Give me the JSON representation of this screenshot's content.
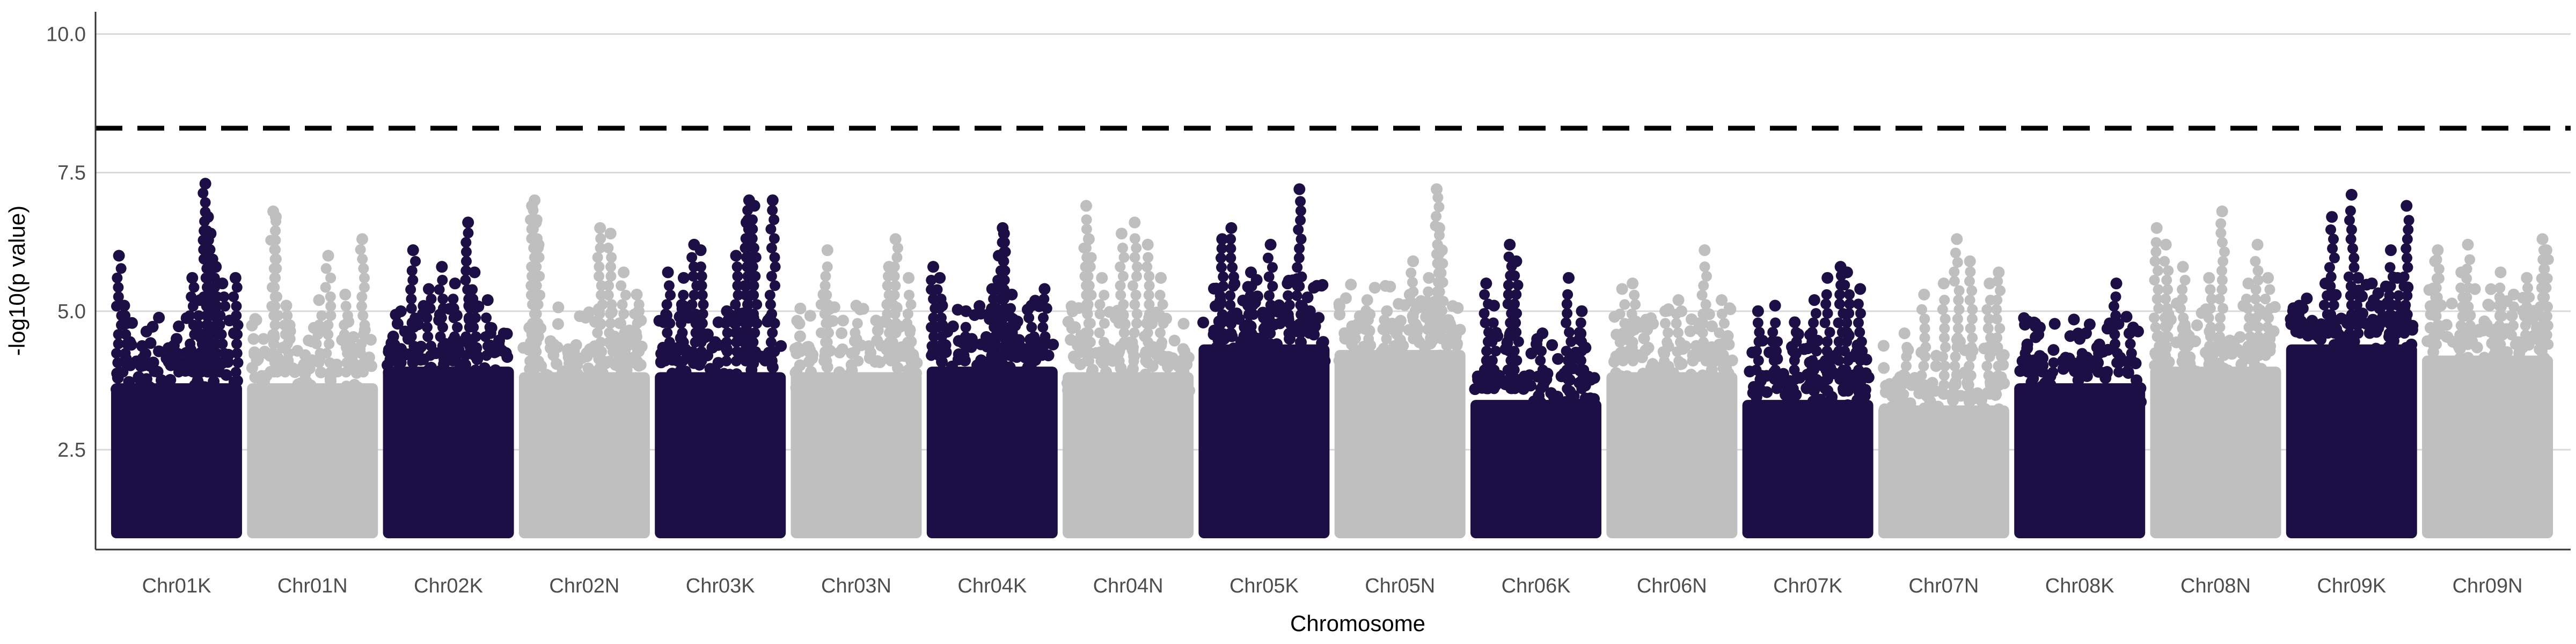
{
  "chart_data": {
    "type": "scatter",
    "subtype": "manhattan",
    "title": "",
    "xlabel": "Chromosome",
    "ylabel": "-log10(p value)",
    "ylim": [
      0.7,
      10.4
    ],
    "yticks": [
      2.5,
      5.0,
      7.5,
      10.0
    ],
    "ytick_labels": [
      "2.5",
      "5.0",
      "7.5",
      "10.0"
    ],
    "grid": "horizontal-major",
    "legend": "none",
    "threshold": {
      "value": 8.3,
      "style": "dashed",
      "color": "#000000"
    },
    "point_floor": 1.0,
    "colors": {
      "dark": "#1c0f45",
      "light": "#bfbfbf",
      "grid": "#d9d9d9",
      "axis": "#333333",
      "text": "#4d4d4d"
    },
    "categories": [
      "Chr01K",
      "Chr01N",
      "Chr02K",
      "Chr02N",
      "Chr03K",
      "Chr03N",
      "Chr04K",
      "Chr04N",
      "Chr05K",
      "Chr05N",
      "Chr06K",
      "Chr06N",
      "Chr07K",
      "Chr07N",
      "Chr08K",
      "Chr08N",
      "Chr09K",
      "Chr09N"
    ],
    "series_colors": [
      "dark",
      "light",
      "dark",
      "light",
      "dark",
      "light",
      "dark",
      "light",
      "dark",
      "light",
      "dark",
      "light",
      "dark",
      "light",
      "dark",
      "light",
      "dark",
      "light"
    ],
    "dense_top": [
      3.9,
      3.9,
      4.2,
      4.1,
      4.1,
      4.1,
      4.2,
      4.1,
      4.6,
      4.5,
      3.6,
      4.1,
      3.6,
      3.5,
      3.9,
      4.2,
      4.6,
      4.4
    ],
    "peaks": [
      {
        "chromosome": "Chr01K",
        "points": [
          [
            0.06,
            6.0
          ],
          [
            0.1,
            5.1
          ],
          [
            0.5,
            4.5
          ],
          [
            0.62,
            5.6
          ],
          [
            0.68,
            5.2
          ],
          [
            0.72,
            7.3
          ],
          [
            0.74,
            6.7
          ],
          [
            0.76,
            6.4
          ],
          [
            0.8,
            5.8
          ],
          [
            0.85,
            5.5
          ],
          [
            0.95,
            5.6
          ]
        ]
      },
      {
        "chromosome": "Chr01N",
        "points": [
          [
            0.2,
            6.8
          ],
          [
            0.22,
            6.7
          ],
          [
            0.3,
            5.1
          ],
          [
            0.55,
            5.2
          ],
          [
            0.62,
            6.0
          ],
          [
            0.75,
            5.3
          ],
          [
            0.88,
            6.3
          ]
        ]
      },
      {
        "chromosome": "Chr02K",
        "points": [
          [
            0.23,
            6.1
          ],
          [
            0.35,
            5.4
          ],
          [
            0.45,
            5.8
          ],
          [
            0.55,
            5.5
          ],
          [
            0.65,
            6.6
          ],
          [
            0.7,
            5.7
          ],
          [
            0.8,
            5.2
          ]
        ]
      },
      {
        "chromosome": "Chr02N",
        "points": [
          [
            0.1,
            6.9
          ],
          [
            0.12,
            7.0
          ],
          [
            0.13,
            6.6
          ],
          [
            0.15,
            6.2
          ],
          [
            0.62,
            6.5
          ],
          [
            0.7,
            6.4
          ],
          [
            0.8,
            5.7
          ],
          [
            0.9,
            5.3
          ]
        ]
      },
      {
        "chromosome": "Chr03K",
        "points": [
          [
            0.1,
            5.7
          ],
          [
            0.22,
            5.6
          ],
          [
            0.3,
            6.2
          ],
          [
            0.35,
            6.1
          ],
          [
            0.55,
            5.0
          ],
          [
            0.62,
            6.0
          ],
          [
            0.7,
            6.6
          ],
          [
            0.72,
            7.0
          ],
          [
            0.76,
            6.9
          ],
          [
            0.9,
            7.0
          ]
        ]
      },
      {
        "chromosome": "Chr03N",
        "points": [
          [
            0.25,
            5.3
          ],
          [
            0.28,
            6.1
          ],
          [
            0.5,
            5.1
          ],
          [
            0.75,
            5.8
          ],
          [
            0.8,
            6.3
          ],
          [
            0.9,
            5.6
          ]
        ]
      },
      {
        "chromosome": "Chr04K",
        "points": [
          [
            0.05,
            5.8
          ],
          [
            0.1,
            5.6
          ],
          [
            0.3,
            5.0
          ],
          [
            0.5,
            5.4
          ],
          [
            0.55,
            6.0
          ],
          [
            0.58,
            6.5
          ],
          [
            0.59,
            6.4
          ],
          [
            0.65,
            5.3
          ],
          [
            0.8,
            5.1
          ],
          [
            0.9,
            5.4
          ]
        ]
      },
      {
        "chromosome": "Chr04N",
        "points": [
          [
            0.18,
            6.9
          ],
          [
            0.2,
            6.3
          ],
          [
            0.3,
            5.6
          ],
          [
            0.45,
            6.4
          ],
          [
            0.55,
            6.6
          ],
          [
            0.65,
            6.2
          ],
          [
            0.75,
            5.6
          ]
        ]
      },
      {
        "chromosome": "Chr05K",
        "points": [
          [
            0.18,
            6.3
          ],
          [
            0.25,
            6.5
          ],
          [
            0.4,
            5.7
          ],
          [
            0.55,
            6.2
          ],
          [
            0.68,
            5.5
          ],
          [
            0.77,
            7.2
          ],
          [
            0.85,
            5.0
          ]
        ]
      },
      {
        "chromosome": "Chr05N",
        "points": [
          [
            0.25,
            5.2
          ],
          [
            0.4,
            5.0
          ],
          [
            0.6,
            5.9
          ],
          [
            0.72,
            5.6
          ],
          [
            0.78,
            7.2
          ],
          [
            0.8,
            6.5
          ],
          [
            0.82,
            6.1
          ]
        ]
      },
      {
        "chromosome": "Chr06K",
        "points": [
          [
            0.12,
            5.5
          ],
          [
            0.18,
            5.1
          ],
          [
            0.3,
            6.2
          ],
          [
            0.35,
            5.9
          ],
          [
            0.55,
            4.6
          ],
          [
            0.75,
            5.6
          ],
          [
            0.85,
            5.0
          ]
        ]
      },
      {
        "chromosome": "Chr06N",
        "points": [
          [
            0.12,
            5.4
          ],
          [
            0.2,
            5.5
          ],
          [
            0.45,
            5.0
          ],
          [
            0.55,
            5.2
          ],
          [
            0.75,
            6.1
          ],
          [
            0.88,
            5.2
          ]
        ]
      },
      {
        "chromosome": "Chr07K",
        "points": [
          [
            0.12,
            5.0
          ],
          [
            0.25,
            5.1
          ],
          [
            0.4,
            4.8
          ],
          [
            0.55,
            5.2
          ],
          [
            0.65,
            5.6
          ],
          [
            0.75,
            5.8
          ],
          [
            0.8,
            5.7
          ],
          [
            0.9,
            5.4
          ]
        ]
      },
      {
        "chromosome": "Chr07N",
        "points": [
          [
            0.2,
            4.6
          ],
          [
            0.35,
            5.3
          ],
          [
            0.5,
            5.5
          ],
          [
            0.6,
            6.3
          ],
          [
            0.7,
            5.9
          ],
          [
            0.85,
            5.5
          ],
          [
            0.92,
            5.7
          ]
        ]
      },
      {
        "chromosome": "Chr08K",
        "points": [
          [
            0.1,
            4.4
          ],
          [
            0.3,
            4.3
          ],
          [
            0.5,
            4.5
          ],
          [
            0.65,
            4.4
          ],
          [
            0.78,
            5.5
          ],
          [
            0.88,
            4.6
          ]
        ]
      },
      {
        "chromosome": "Chr08N",
        "points": [
          [
            0.05,
            6.5
          ],
          [
            0.12,
            6.2
          ],
          [
            0.25,
            5.8
          ],
          [
            0.45,
            5.6
          ],
          [
            0.55,
            6.8
          ],
          [
            0.75,
            5.5
          ],
          [
            0.82,
            6.2
          ],
          [
            0.9,
            5.6
          ]
        ]
      },
      {
        "chromosome": "Chr09K",
        "points": [
          [
            0.1,
            5.1
          ],
          [
            0.3,
            5.5
          ],
          [
            0.35,
            6.7
          ],
          [
            0.5,
            7.1
          ],
          [
            0.55,
            5.6
          ],
          [
            0.8,
            6.1
          ],
          [
            0.85,
            5.6
          ],
          [
            0.92,
            6.9
          ]
        ]
      },
      {
        "chromosome": "Chr09N",
        "points": [
          [
            0.1,
            5.9
          ],
          [
            0.12,
            6.1
          ],
          [
            0.3,
            5.7
          ],
          [
            0.35,
            6.2
          ],
          [
            0.6,
            5.7
          ],
          [
            0.7,
            5.3
          ],
          [
            0.8,
            5.6
          ],
          [
            0.92,
            6.3
          ],
          [
            0.95,
            6.1
          ]
        ]
      }
    ]
  }
}
